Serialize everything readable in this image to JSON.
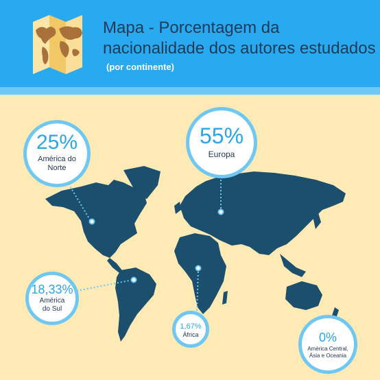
{
  "header": {
    "title": "Mapa - Porcentagem da nacionalidade dos autores estudados",
    "subtitle": "(por continente)",
    "icon": "folded-map-icon"
  },
  "regions": [
    {
      "id": "north-america",
      "percent": "25%",
      "label": "América do Norte"
    },
    {
      "id": "europe",
      "percent": "55%",
      "label": "Europa"
    },
    {
      "id": "south-america",
      "percent": "18,33%",
      "label": "América do Sul"
    },
    {
      "id": "africa",
      "percent": "1,67%",
      "label": "África"
    },
    {
      "id": "others",
      "percent": "0%",
      "label": "América Central, Ásia e Oceania"
    }
  ],
  "colors": {
    "header": "#29a9f0",
    "header_strip": "#6ec8f7",
    "background": "#fdeab4",
    "map": "#1c4f6e",
    "accent": "#2aa5e8",
    "bubble_border": "#6fc7f4",
    "title_text": "#1d3c5a"
  }
}
